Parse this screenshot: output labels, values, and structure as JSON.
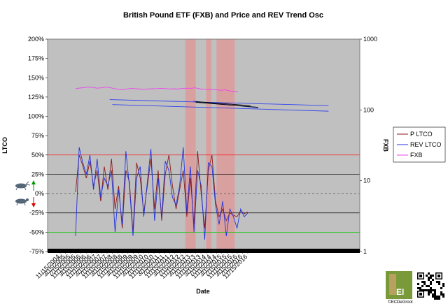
{
  "chart_data": {
    "type": "line",
    "title": "British Pound ETF (FXB) and Price and REV Trend Osc",
    "xlabel": "Date",
    "ylabel_left": "LTCO",
    "ylabel_right": "FXB",
    "ylim_left": [
      -0.75,
      2.0
    ],
    "ylim_right": [
      1,
      1000
    ],
    "right_scale": "log",
    "y_ticks_left": [
      "200%",
      "175%",
      "150%",
      "125%",
      "100%",
      "75%",
      "50%",
      "25%",
      "0%",
      "-25%",
      "-50%",
      "-75%"
    ],
    "y_ticks_right": [
      "1000",
      "100",
      "10",
      "1"
    ],
    "x_ticks": [
      "11/15/2004",
      "3/15/2005",
      "7/15/2005",
      "11/15/2005",
      "3/15/2006",
      "7/15/2006",
      "11/15/2006",
      "3/15/2007",
      "7/15/2007",
      "11/15/2007",
      "3/15/2008",
      "7/15/2008",
      "11/15/2008",
      "3/15/2009",
      "7/15/2009",
      "11/15/2009",
      "3/15/2010",
      "7/15/2010",
      "11/15/2010",
      "3/15/2011",
      "7/15/2011",
      "11/15/2011",
      "3/15/2012",
      "7/15/2012",
      "11/15/2012",
      "3/15/2013",
      "7/15/2013",
      "11/15/2013",
      "3/15/2014",
      "7/15/2014",
      "11/15/2014",
      "3/15/2015",
      "7/15/2015",
      "11/15/2015",
      "3/15/2016",
      "7/15/2016",
      "11/15/2016"
    ],
    "grid": false,
    "legend_position": "right",
    "series": [
      {
        "name": "P LTCO",
        "color": "#8B1A1A",
        "values": [
          0.02,
          0.5,
          0.36,
          0.2,
          0.42,
          0.1,
          0.3,
          -0.1,
          0.35,
          0.05,
          0.45,
          -0.2,
          0.1,
          -0.45,
          0.3,
          0.15,
          -0.5,
          0.4,
          0.2,
          -0.25,
          0.1,
          0.45,
          -0.2,
          0.3,
          -0.35,
          0.25,
          0.5,
          0.1,
          -0.2,
          0.05,
          0.3,
          -0.3,
          0.2,
          -0.4,
          0.55,
          0.0,
          -0.45,
          0.3,
          0.5,
          -0.1,
          -0.3,
          -0.2,
          -0.35,
          -0.25,
          -0.28,
          -0.3,
          -0.22,
          -0.26,
          -0.24
        ]
      },
      {
        "name": "REV LTCO",
        "color": "#2233DD",
        "values": [
          -0.55,
          0.6,
          0.4,
          0.25,
          0.5,
          0.05,
          0.45,
          -0.05,
          0.2,
          0.1,
          0.3,
          -0.5,
          0.05,
          -0.4,
          0.55,
          0.1,
          -0.55,
          0.2,
          0.35,
          -0.3,
          0.15,
          0.58,
          -0.35,
          0.2,
          -0.3,
          0.42,
          0.3,
          -0.05,
          -0.15,
          0.1,
          0.6,
          -0.25,
          0.35,
          -0.5,
          0.3,
          0.1,
          -0.6,
          0.4,
          0.35,
          -0.15,
          -0.4,
          -0.1,
          -0.55,
          -0.2,
          -0.3,
          -0.45,
          -0.2,
          -0.3,
          -0.25
        ]
      },
      {
        "name": "FXB",
        "color": "#EE44EE",
        "values": [
          200,
          204,
          207,
          210,
          208,
          203,
          205,
          210,
          207,
          200,
          196,
          192,
          198,
          201,
          200,
          197,
          195,
          198,
          199,
          200,
          202,
          200,
          198,
          199,
          197,
          201,
          203,
          202,
          205,
          199,
          195,
          194,
          195,
          192,
          189,
          192,
          186,
          182,
          180
        ]
      }
    ],
    "reference_lines": [
      {
        "value": 0.5,
        "color": "#FF0000"
      },
      {
        "value": 0.25,
        "color": "#000000"
      },
      {
        "value": 0.0,
        "color": "#555555",
        "style": "dashed"
      },
      {
        "value": -0.25,
        "color": "#000000"
      },
      {
        "value": -0.5,
        "color": "#00CC00"
      }
    ],
    "shaded_periods": [
      {
        "from": "11/15/2012",
        "to": "7/15/2013",
        "color": "#D9A0A0"
      },
      {
        "from": "3/15/2014",
        "to": "7/15/2014",
        "color": "#D9A0A0"
      },
      {
        "from": "11/15/2014",
        "to": "1/15/2016",
        "color": "#D9A0A0"
      }
    ],
    "trend_lines": [
      {
        "color": "#3344EE",
        "points": [
          [
            "1/15/2008",
            140
          ],
          [
            "1/15/2022",
            115
          ]
        ]
      },
      {
        "color": "#3344EE",
        "points": [
          [
            "3/15/2008",
            119
          ],
          [
            "1/15/2022",
            96
          ]
        ]
      },
      {
        "color": "#3344EE",
        "points": [
          [
            "5/15/2013",
            133
          ],
          [
            "7/15/2017",
            107
          ]
        ]
      },
      {
        "color": "#000000",
        "points": [
          [
            "7/15/2013",
            131
          ],
          [
            "1/15/2017",
            115
          ]
        ]
      },
      {
        "color": "#000000",
        "points": [
          [
            "7/15/2013",
            128
          ],
          [
            "7/15/2017",
            109
          ]
        ]
      }
    ],
    "copyright": "©ECDeGroot",
    "logo_text": "EI"
  }
}
